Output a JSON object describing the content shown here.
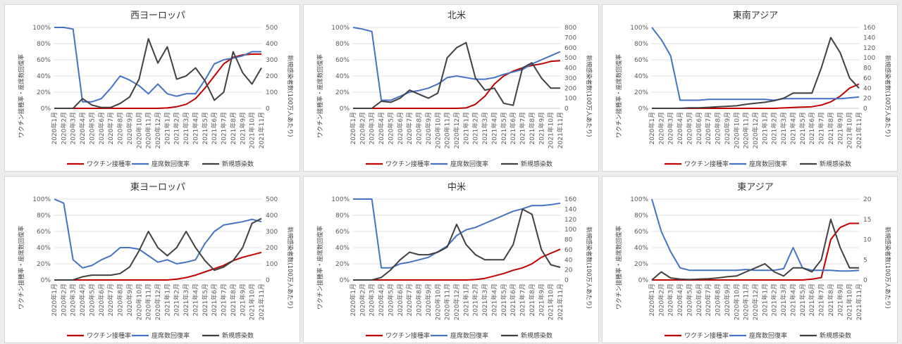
{
  "months": [
    "2020年1月",
    "2020年2月",
    "2020年3月",
    "2020年4月",
    "2020年5月",
    "2020年6月",
    "2020年7月",
    "2020年8月",
    "2020年9月",
    "2020年10月",
    "2020年11月",
    "2020年12月",
    "2021年1月",
    "2021年2月",
    "2021年3月",
    "2021年4月",
    "2021年5月",
    "2021年6月",
    "2021年7月",
    "2021年8月",
    "2021年9月",
    "2021年10月",
    "2021年11月"
  ],
  "ylabel_left": "ワクチン接種率・座席数回復率",
  "ylabel_right": "新規感染者数(100万人あたり)",
  "legend": {
    "vaccine": "ワクチン接種率",
    "seat": "座席数回復率",
    "cases": "新規感染数"
  },
  "colors": {
    "vaccine": "#c00000",
    "seat": "#4472c4",
    "cases": "#404040"
  },
  "chart_data": [
    {
      "type": "line",
      "title": "西ヨーロッパ",
      "ylim_left": [
        0,
        100
      ],
      "ylim_right": [
        0,
        500
      ],
      "right_step": 100,
      "series": [
        {
          "name": "ワクチン接種率",
          "axis": "left",
          "values": [
            0,
            0,
            0,
            0,
            0,
            0,
            0,
            0,
            0,
            0,
            0,
            0,
            0.5,
            2,
            5,
            12,
            25,
            40,
            55,
            63,
            66,
            67,
            67
          ]
        },
        {
          "name": "座席数回復率",
          "axis": "left",
          "values": [
            100,
            100,
            98,
            8,
            8,
            12,
            25,
            40,
            35,
            28,
            18,
            30,
            18,
            15,
            18,
            18,
            35,
            55,
            60,
            62,
            65,
            70,
            70
          ]
        },
        {
          "name": "新規感染数",
          "axis": "right",
          "values": [
            0,
            0,
            0,
            60,
            20,
            5,
            5,
            30,
            70,
            180,
            430,
            280,
            380,
            180,
            200,
            250,
            170,
            50,
            100,
            350,
            220,
            150,
            250
          ]
        }
      ]
    },
    {
      "type": "line",
      "title": "北米",
      "ylim_left": [
        0,
        100
      ],
      "ylim_right": [
        0,
        800
      ],
      "right_step": 100,
      "series": [
        {
          "name": "ワクチン接種率",
          "axis": "left",
          "values": [
            0,
            0,
            0,
            0,
            0,
            0,
            0,
            0,
            0,
            0,
            0,
            0,
            0.5,
            5,
            15,
            30,
            40,
            46,
            50,
            53,
            55,
            58,
            59
          ]
        },
        {
          "name": "座席数回復率",
          "axis": "left",
          "values": [
            100,
            98,
            95,
            10,
            10,
            15,
            20,
            22,
            25,
            30,
            38,
            40,
            38,
            36,
            36,
            38,
            42,
            45,
            48,
            55,
            60,
            65,
            70
          ]
        },
        {
          "name": "新規感染数",
          "axis": "right",
          "values": [
            0,
            0,
            0,
            70,
            60,
            100,
            180,
            140,
            100,
            150,
            500,
            600,
            650,
            300,
            180,
            200,
            50,
            30,
            400,
            450,
            300,
            200,
            200
          ]
        }
      ]
    },
    {
      "type": "line",
      "title": "東南アジア",
      "ylim_left": [
        0,
        100
      ],
      "ylim_right": [
        0,
        160
      ],
      "right_step": 20,
      "series": [
        {
          "name": "ワクチン接種率",
          "axis": "left",
          "values": [
            0,
            0,
            0,
            0,
            0,
            0,
            0,
            0,
            0,
            0,
            0,
            0,
            0,
            0,
            0.5,
            1,
            1.5,
            2,
            4,
            8,
            15,
            25,
            30
          ]
        },
        {
          "name": "座席数回復率",
          "axis": "left",
          "values": [
            100,
            85,
            65,
            10,
            10,
            10,
            11,
            11,
            11,
            11,
            11,
            11,
            11,
            10,
            12,
            12,
            12,
            12,
            12,
            12,
            12,
            13,
            14
          ]
        },
        {
          "name": "新規感染数",
          "axis": "right",
          "values": [
            0,
            0,
            0,
            0,
            1,
            1,
            2,
            3,
            4,
            5,
            8,
            10,
            12,
            15,
            20,
            30,
            30,
            30,
            80,
            140,
            110,
            60,
            40
          ]
        }
      ]
    },
    {
      "type": "line",
      "title": "東ヨーロッパ",
      "ylim_left": [
        0,
        100
      ],
      "ylim_right": [
        0,
        500
      ],
      "right_step": 100,
      "series": [
        {
          "name": "ワクチン接種率",
          "axis": "left",
          "values": [
            0,
            0,
            0,
            0,
            0,
            0,
            0,
            0,
            0,
            0,
            0,
            0,
            0,
            1,
            3,
            6,
            10,
            14,
            18,
            24,
            28,
            31,
            34
          ]
        },
        {
          "name": "座席数回復率",
          "axis": "left",
          "values": [
            100,
            95,
            25,
            15,
            18,
            25,
            30,
            40,
            40,
            38,
            30,
            22,
            25,
            20,
            22,
            25,
            45,
            60,
            68,
            70,
            72,
            75,
            72
          ]
        },
        {
          "name": "新規感染数",
          "axis": "right",
          "values": [
            0,
            0,
            0,
            20,
            30,
            30,
            30,
            40,
            80,
            180,
            300,
            200,
            150,
            200,
            300,
            200,
            120,
            60,
            80,
            120,
            200,
            350,
            380
          ]
        }
      ]
    },
    {
      "type": "line",
      "title": "中米",
      "ylim_left": [
        0,
        100
      ],
      "ylim_right": [
        0,
        160
      ],
      "right_step": 20,
      "series": [
        {
          "name": "ワクチン接種率",
          "axis": "left",
          "values": [
            0,
            0,
            0,
            0,
            0,
            0,
            0,
            0,
            0,
            0,
            0,
            0,
            0,
            0.5,
            2,
            5,
            8,
            12,
            15,
            20,
            28,
            33,
            38
          ]
        },
        {
          "name": "座席数回復率",
          "axis": "left",
          "values": [
            100,
            100,
            100,
            15,
            15,
            20,
            22,
            25,
            28,
            35,
            42,
            55,
            62,
            65,
            70,
            75,
            80,
            85,
            88,
            92,
            92,
            93,
            95
          ]
        },
        {
          "name": "新規感染数",
          "axis": "right",
          "values": [
            0,
            0,
            0,
            5,
            20,
            40,
            55,
            50,
            50,
            55,
            65,
            110,
            70,
            50,
            40,
            40,
            40,
            70,
            140,
            130,
            60,
            30,
            25
          ]
        }
      ]
    },
    {
      "type": "line",
      "title": "東アジア",
      "ylim_left": [
        0,
        100
      ],
      "ylim_right": [
        0,
        20
      ],
      "right_step": 5,
      "series": [
        {
          "name": "ワクチン接種率",
          "axis": "left",
          "values": [
            0,
            0,
            0,
            0,
            0,
            0,
            0,
            0,
            0,
            0,
            0,
            0,
            0,
            0,
            0,
            0,
            0,
            1,
            3,
            50,
            65,
            70,
            70
          ]
        },
        {
          "name": "座席数回復率",
          "axis": "left",
          "values": [
            100,
            60,
            35,
            15,
            12,
            12,
            12,
            12,
            12,
            12,
            13,
            12,
            12,
            12,
            14,
            40,
            15,
            12,
            12,
            12,
            11,
            11,
            12
          ]
        },
        {
          "name": "新規感染数",
          "axis": "right",
          "values": [
            0,
            2,
            0.5,
            0.2,
            0.1,
            0.2,
            0.3,
            0.5,
            0.8,
            1,
            2,
            3,
            4,
            2,
            1,
            3,
            3,
            2,
            5,
            15,
            8,
            3,
            3
          ]
        }
      ]
    }
  ]
}
